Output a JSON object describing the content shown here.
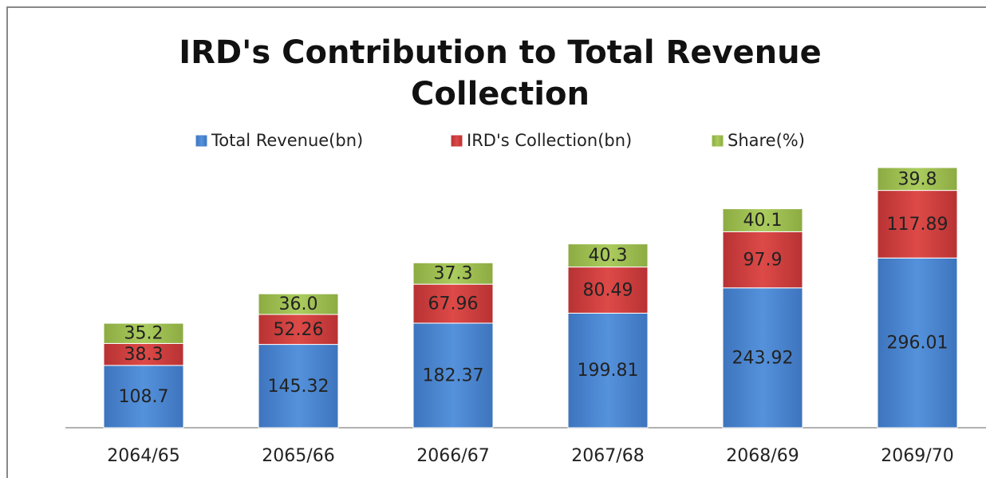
{
  "chart_data": {
    "type": "stacked_bar",
    "title": "IRD's Contribution to Total Revenue Collection",
    "categories": [
      "2064/65",
      "2065/66",
      "2066/67",
      "2067/68",
      "2068/69",
      "2069/70"
    ],
    "series": [
      {
        "name": "Total Revenue(bn)",
        "color": "#4a84cc",
        "values": [
          108.7,
          145.32,
          182.37,
          199.81,
          243.92,
          296.01
        ]
      },
      {
        "name": "IRD's Collection(bn)",
        "color": "#c9393a",
        "values": [
          38.3,
          52.26,
          67.96,
          80.49,
          97.9,
          117.89
        ]
      },
      {
        "name": "Share(%)",
        "color": "#9bbb4f",
        "values": [
          35.2,
          36,
          37.3,
          40.3,
          40.1,
          39.8
        ],
        "value_labels": [
          "35.2",
          "36.0",
          "37.3",
          "40.3",
          "40.1",
          "39.8"
        ]
      }
    ],
    "legend": "top"
  }
}
